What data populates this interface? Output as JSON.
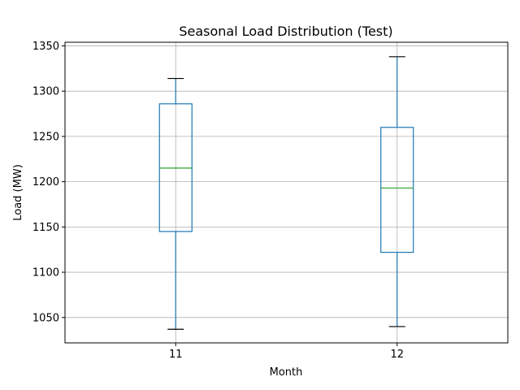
{
  "chart_data": {
    "type": "box",
    "title": "Seasonal Load Distribution (Test)",
    "xlabel": "Month",
    "ylabel": "Load (MW)",
    "categories": [
      "11",
      "12"
    ],
    "boxes": [
      {
        "category": "11",
        "whisker_low": 1037,
        "q1": 1145,
        "median": 1215,
        "q3": 1286,
        "whisker_high": 1314
      },
      {
        "category": "12",
        "whisker_low": 1040,
        "q1": 1122,
        "median": 1193,
        "q3": 1260,
        "whisker_high": 1338
      }
    ],
    "ylim": [
      1022,
      1354
    ],
    "yticks": [
      1050,
      1100,
      1150,
      1200,
      1250,
      1300,
      1350
    ],
    "grid": true,
    "colors": {
      "box": "#1f77b4",
      "median": "#2ca02c",
      "caps": "#000000",
      "grid": "#b0b0b0"
    }
  }
}
